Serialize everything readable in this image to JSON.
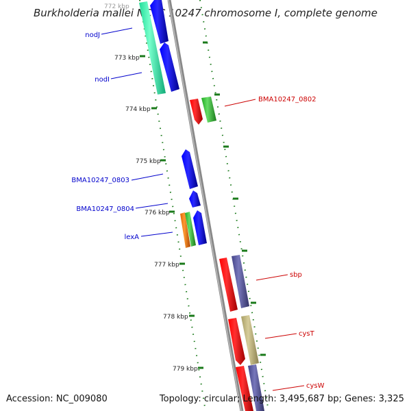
{
  "title": "Burkholderia mallei NCTC 10247 chromosome I, complete genome",
  "footer": {
    "accession": "Accession: NC_009080",
    "topology": "Topology: circular; Length: 3,495,687 bp; Genes: 3,325"
  },
  "kbp_labels": [
    "772 kbp",
    "773 kbp",
    "774 kbp",
    "775 kbp",
    "776 kbp",
    "777 kbp",
    "778 kbp",
    "779 kbp"
  ],
  "genes_left": [
    {
      "name": "nodJ",
      "color": "#0000cc"
    },
    {
      "name": "nodI",
      "color": "#0000cc"
    },
    {
      "name": "BMA10247_0803",
      "color": "#0000cc"
    },
    {
      "name": "BMA10247_0804",
      "color": "#0000cc"
    },
    {
      "name": "lexA",
      "color": "#0000cc"
    }
  ],
  "genes_right": [
    {
      "name": "BMA10247_0802",
      "color": "#cc0000"
    },
    {
      "name": "sbp",
      "color": "#cc0000"
    },
    {
      "name": "cysT",
      "color": "#cc0000"
    },
    {
      "name": "cysW",
      "color": "#cc0000"
    }
  ],
  "colors": {
    "backbone": "#888888",
    "tick": "#1a7a1a",
    "blue": "#0000dd",
    "red": "#ee0000",
    "green": "#33bb33",
    "teal": "#33eeaa",
    "orange": "#ee7700",
    "purple": "#555599",
    "khaki": "#bbb077"
  }
}
